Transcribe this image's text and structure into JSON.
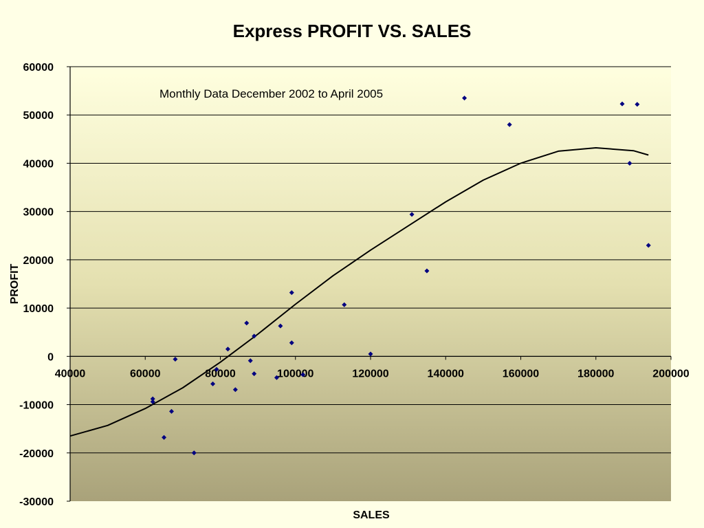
{
  "chart_data": {
    "type": "scatter",
    "title": "Express PROFIT VS. SALES",
    "xlabel": "SALES",
    "ylabel": "PROFIT",
    "annotation": "Monthly Data December 2002 to April 2005",
    "xlim": [
      40000,
      200000
    ],
    "ylim": [
      -30000,
      60000
    ],
    "x_ticks": [
      40000,
      60000,
      80000,
      100000,
      120000,
      140000,
      160000,
      180000,
      200000
    ],
    "y_ticks": [
      -30000,
      -20000,
      -10000,
      0,
      10000,
      20000,
      30000,
      40000,
      50000,
      60000
    ],
    "x_tick_labels": [
      "40000",
      "60000",
      "80000",
      "100000",
      "120000",
      "140000",
      "160000",
      "180000",
      "200000"
    ],
    "y_tick_labels": [
      "-30000",
      "-20000",
      "-10000",
      "0",
      "10000",
      "20000",
      "30000",
      "40000",
      "50000",
      "60000"
    ],
    "grid": "horizontal major gridlines",
    "legend": "none",
    "colors": {
      "marker": "#000080",
      "trendline": "#000000",
      "gradient_top": "#ffffdf",
      "gradient_bottom": "#a9a27a",
      "page_background": "#ffffe6"
    },
    "series": [
      {
        "marker": "diamond",
        "points": [
          {
            "x": 62000,
            "y": -8800
          },
          {
            "x": 62000,
            "y": -9400
          },
          {
            "x": 65000,
            "y": -16800
          },
          {
            "x": 67000,
            "y": -11400
          },
          {
            "x": 68000,
            "y": -600
          },
          {
            "x": 73000,
            "y": -20000
          },
          {
            "x": 78000,
            "y": -5700
          },
          {
            "x": 79000,
            "y": -2700
          },
          {
            "x": 82000,
            "y": 1500
          },
          {
            "x": 84000,
            "y": -6900
          },
          {
            "x": 87000,
            "y": 6900
          },
          {
            "x": 88000,
            "y": -900
          },
          {
            "x": 89000,
            "y": 4200
          },
          {
            "x": 89000,
            "y": -3600
          },
          {
            "x": 95000,
            "y": -4400
          },
          {
            "x": 96000,
            "y": 6300
          },
          {
            "x": 99000,
            "y": 13200
          },
          {
            "x": 99000,
            "y": 2800
          },
          {
            "x": 102000,
            "y": -3800
          },
          {
            "x": 113000,
            "y": 10700
          },
          {
            "x": 120000,
            "y": 500
          },
          {
            "x": 131000,
            "y": 29400
          },
          {
            "x": 135000,
            "y": 17700
          },
          {
            "x": 145000,
            "y": 53500
          },
          {
            "x": 157000,
            "y": 48000
          },
          {
            "x": 187000,
            "y": 52300
          },
          {
            "x": 189000,
            "y": 40000
          },
          {
            "x": 191000,
            "y": 52200
          },
          {
            "x": 194000,
            "y": 23000
          }
        ]
      }
    ],
    "trendline": {
      "type": "polynomial",
      "points": [
        {
          "x": 40000,
          "y": -16500
        },
        {
          "x": 50000,
          "y": -14300
        },
        {
          "x": 60000,
          "y": -10800
        },
        {
          "x": 70000,
          "y": -6500
        },
        {
          "x": 80000,
          "y": -1200
        },
        {
          "x": 90000,
          "y": 4600
        },
        {
          "x": 100000,
          "y": 10800
        },
        {
          "x": 110000,
          "y": 16700
        },
        {
          "x": 120000,
          "y": 22000
        },
        {
          "x": 130000,
          "y": 27000
        },
        {
          "x": 140000,
          "y": 32000
        },
        {
          "x": 150000,
          "y": 36500
        },
        {
          "x": 160000,
          "y": 40000
        },
        {
          "x": 170000,
          "y": 42500
        },
        {
          "x": 180000,
          "y": 43200
        },
        {
          "x": 190000,
          "y": 42600
        },
        {
          "x": 194000,
          "y": 41700
        }
      ]
    }
  }
}
